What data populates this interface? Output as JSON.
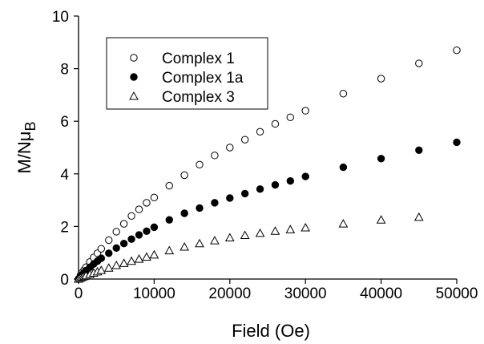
{
  "chart_data": {
    "type": "scatter",
    "xlabel": "Field (Oe)",
    "ylabel_main": "M/N",
    "ylabel_mu": "μ",
    "ylabel_sub": "B",
    "xlim": [
      0,
      50000
    ],
    "ylim": [
      0,
      10
    ],
    "xticks": [
      0,
      10000,
      20000,
      30000,
      40000,
      50000
    ],
    "yticks": [
      0,
      2,
      4,
      6,
      8,
      10
    ],
    "grid": false,
    "legend_position": "top-left",
    "series": [
      {
        "name": "Complex 1",
        "marker": "open-circle",
        "x": [
          0,
          250,
          500,
          750,
          1000,
          1500,
          2000,
          2500,
          3000,
          4000,
          5000,
          6000,
          7000,
          8000,
          9000,
          10000,
          12000,
          14000,
          16000,
          18000,
          20000,
          22000,
          24000,
          26000,
          28000,
          30000,
          35000,
          40000,
          45000,
          50000
        ],
        "y": [
          0.0,
          0.14,
          0.25,
          0.35,
          0.45,
          0.65,
          0.82,
          0.98,
          1.15,
          1.48,
          1.8,
          2.1,
          2.4,
          2.65,
          2.9,
          3.1,
          3.55,
          3.95,
          4.35,
          4.7,
          5.0,
          5.3,
          5.6,
          5.9,
          6.15,
          6.4,
          7.05,
          7.62,
          8.2,
          8.7
        ]
      },
      {
        "name": "Complex 1a",
        "marker": "filled-circle",
        "x": [
          0,
          250,
          500,
          750,
          1000,
          1500,
          2000,
          2500,
          3000,
          4000,
          5000,
          6000,
          7000,
          8000,
          9000,
          10000,
          12000,
          14000,
          16000,
          18000,
          20000,
          22000,
          24000,
          26000,
          28000,
          30000,
          35000,
          40000,
          45000,
          50000
        ],
        "y": [
          0.0,
          0.09,
          0.17,
          0.25,
          0.32,
          0.45,
          0.57,
          0.68,
          0.79,
          0.98,
          1.18,
          1.35,
          1.52,
          1.68,
          1.82,
          1.97,
          2.25,
          2.5,
          2.7,
          2.9,
          3.08,
          3.25,
          3.42,
          3.58,
          3.73,
          3.9,
          4.25,
          4.58,
          4.9,
          5.2
        ]
      },
      {
        "name": "Complex 3",
        "marker": "open-triangle",
        "x": [
          0,
          250,
          500,
          750,
          1000,
          1500,
          2000,
          2500,
          3000,
          4000,
          5000,
          6000,
          7000,
          8000,
          9000,
          10000,
          12000,
          14000,
          16000,
          18000,
          20000,
          22000,
          24000,
          26000,
          28000,
          30000,
          35000,
          40000,
          45000
        ],
        "y": [
          0.0,
          0.04,
          0.07,
          0.1,
          0.13,
          0.18,
          0.23,
          0.28,
          0.33,
          0.42,
          0.52,
          0.6,
          0.68,
          0.76,
          0.84,
          0.92,
          1.08,
          1.22,
          1.35,
          1.46,
          1.57,
          1.66,
          1.74,
          1.82,
          1.88,
          1.95,
          2.1,
          2.25,
          2.35
        ]
      }
    ]
  }
}
